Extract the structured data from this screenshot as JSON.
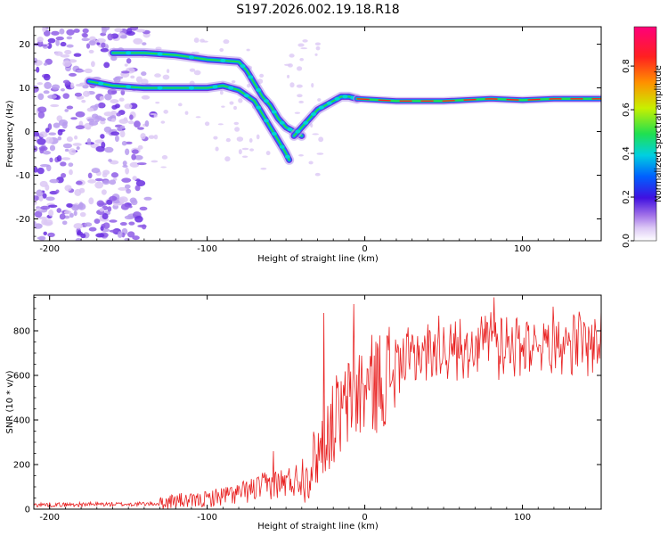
{
  "title": "S197.2026.002.19.18.R18",
  "colors": {
    "snr_line": "#e82020",
    "background": "#ffffff",
    "axis": "#000000",
    "colormap": [
      "#ffffff",
      "#dcc8f5",
      "#b89cee",
      "#8f5ee6",
      "#6a2fe0",
      "#1f1fe0",
      "#0090ff",
      "#00d8d0",
      "#20e050",
      "#c8f000",
      "#ff9000",
      "#ff2020",
      "#ff007a"
    ]
  },
  "chart_data": [
    {
      "type": "heatmap",
      "title": "",
      "xlabel": "Height of straight line (km)",
      "ylabel": "Frequency (Hz)",
      "xlim": [
        -210,
        150
      ],
      "ylim": [
        -25,
        24
      ],
      "x_ticks": [
        -200,
        -100,
        0,
        100
      ],
      "y_ticks": [
        -20,
        -10,
        0,
        10,
        20
      ],
      "colorbar": {
        "label": "Normalized spectral amplitude",
        "range": [
          0,
          0.98
        ],
        "ticks": [
          0.0,
          0.2,
          0.4,
          0.6,
          0.8
        ]
      },
      "ridges": [
        {
          "name": "upper_branch",
          "points": [
            [
              -160,
              18
            ],
            [
              -140,
              18
            ],
            [
              -120,
              17.5
            ],
            [
              -100,
              16.5
            ],
            [
              -80,
              16
            ],
            [
              -75,
              14
            ],
            [
              -70,
              11
            ],
            [
              -65,
              8
            ],
            [
              -60,
              6
            ],
            [
              -55,
              3
            ],
            [
              -50,
              1
            ],
            [
              -45,
              0
            ],
            [
              -40,
              -1
            ]
          ]
        },
        {
          "name": "lower_branch",
          "points": [
            [
              -175,
              11.5
            ],
            [
              -160,
              10.5
            ],
            [
              -140,
              10
            ],
            [
              -120,
              10
            ],
            [
              -100,
              10
            ],
            [
              -90,
              10.5
            ],
            [
              -80,
              9.5
            ],
            [
              -70,
              7
            ],
            [
              -65,
              4
            ],
            [
              -60,
              1
            ],
            [
              -55,
              -2
            ],
            [
              -50,
              -5
            ],
            [
              -48,
              -6.5
            ]
          ]
        },
        {
          "name": "rising_segment",
          "points": [
            [
              -45,
              -1
            ],
            [
              -40,
              1
            ],
            [
              -35,
              3
            ],
            [
              -30,
              5
            ],
            [
              -25,
              6
            ],
            [
              -20,
              7
            ],
            [
              -15,
              8
            ],
            [
              -10,
              8
            ],
            [
              -5,
              7.5
            ]
          ]
        },
        {
          "name": "steady_line",
          "points": [
            [
              -5,
              7.5
            ],
            [
              20,
              7
            ],
            [
              50,
              7
            ],
            [
              80,
              7.5
            ],
            [
              100,
              7.2
            ],
            [
              120,
              7.5
            ],
            [
              150,
              7.5
            ]
          ]
        }
      ],
      "noise_region_x": [
        -210,
        -135
      ]
    },
    {
      "type": "line",
      "title": "",
      "xlabel": "Height of straight line (km)",
      "ylabel": "SNR (10 * v/v)",
      "xlim": [
        -210,
        150
      ],
      "ylim": [
        0,
        960
      ],
      "x_ticks": [
        -200,
        -100,
        0,
        100
      ],
      "y_ticks": [
        0,
        200,
        400,
        600,
        800
      ],
      "series": [
        {
          "name": "SNR",
          "x": [
            -210,
            -190,
            -170,
            -150,
            -130,
            -120,
            -110,
            -100,
            -90,
            -80,
            -70,
            -60,
            -50,
            -40,
            -35,
            -30,
            -25,
            -20,
            -15,
            -10,
            -5,
            0,
            5,
            10,
            15,
            20,
            30,
            40,
            50,
            60,
            70,
            80,
            90,
            100,
            110,
            120,
            130,
            140,
            150
          ],
          "values": [
            20,
            20,
            22,
            22,
            25,
            40,
            35,
            45,
            60,
            70,
            90,
            110,
            120,
            140,
            180,
            250,
            330,
            380,
            420,
            480,
            520,
            540,
            560,
            580,
            610,
            650,
            690,
            710,
            720,
            720,
            740,
            760,
            740,
            750,
            750,
            760,
            750,
            750,
            750
          ],
          "spikes": [
            [
              -58,
              260
            ],
            [
              -26,
              880
            ],
            [
              -18,
              600
            ],
            [
              -7,
              920
            ],
            [
              82,
              950
            ],
            [
              85,
              580
            ]
          ]
        }
      ]
    }
  ]
}
